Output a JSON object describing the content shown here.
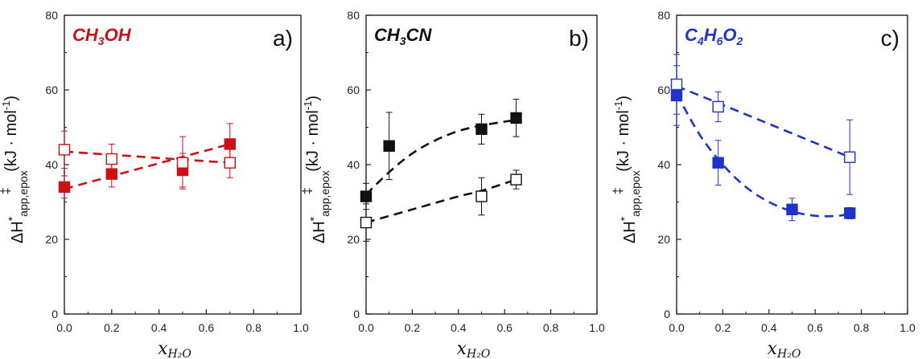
{
  "chart_data": [
    {
      "type": "scatter",
      "panel": "a)",
      "solvent": {
        "base": "CH",
        "sub1": "3",
        "mid": "OH",
        "sub2": "",
        "tail": ""
      },
      "color": "#cc1016",
      "xlim": [
        0,
        1.0
      ],
      "ylim": [
        0,
        80
      ],
      "xticks": [
        "0.0",
        "0.2",
        "0.4",
        "0.6",
        "0.8",
        "1.0"
      ],
      "yticks": [
        "0",
        "20",
        "40",
        "60",
        "80"
      ],
      "ylabel": {
        "main": "ΔH",
        "sup_star": "*",
        "sub": "app,epox",
        "sup_dagger": "‡",
        "units": " (kJ · mol",
        "units_exp": "-1",
        "units_close": ")"
      },
      "xlabel": {
        "main": "x",
        "sub": "H₂O"
      },
      "series": [
        {
          "marker": "filled-square",
          "x": [
            0.0,
            0.2,
            0.5,
            0.7
          ],
          "y": [
            34,
            37.5,
            38.5,
            45.5
          ],
          "err": [
            3,
            3.5,
            4.5,
            5.5
          ],
          "fit": [
            [
              0.0,
              33.5
            ],
            [
              0.7,
              45.5
            ]
          ]
        },
        {
          "marker": "open-square",
          "x": [
            0.0,
            0.2,
            0.5,
            0.7
          ],
          "y": [
            44,
            41.5,
            40.5,
            40.5
          ],
          "err": [
            5,
            4,
            7,
            4
          ],
          "fit": [
            [
              0.0,
              43.5
            ],
            [
              0.7,
              40.5
            ]
          ]
        }
      ]
    },
    {
      "type": "scatter",
      "panel": "b)",
      "solvent": {
        "base": "CH",
        "sub1": "3",
        "mid": "CN",
        "sub2": "",
        "tail": ""
      },
      "color": "#111111",
      "xlim": [
        0,
        1.0
      ],
      "ylim": [
        0,
        80
      ],
      "xticks": [
        "0.0",
        "0.2",
        "0.4",
        "0.6",
        "0.8",
        "1.0"
      ],
      "yticks": [
        "0",
        "20",
        "40",
        "60",
        "80"
      ],
      "ylabel": {
        "main": "ΔH",
        "sup_star": "*",
        "sub": "app,epox",
        "sup_dagger": "‡",
        "units": " (kJ · mol",
        "units_exp": "-1",
        "units_close": ")"
      },
      "xlabel": {
        "main": "x",
        "sub": "H₂O"
      },
      "series": [
        {
          "marker": "filled-square",
          "x": [
            0.0,
            0.1,
            0.5,
            0.65
          ],
          "y": [
            31.5,
            45,
            49.5,
            52.5
          ],
          "err": [
            3.5,
            9,
            4,
            5
          ],
          "fit": [
            [
              0.0,
              32
            ],
            [
              0.1,
              38
            ],
            [
              0.2,
              43
            ],
            [
              0.3,
              46.5
            ],
            [
              0.4,
              49
            ],
            [
              0.5,
              50.5
            ],
            [
              0.6,
              51.5
            ],
            [
              0.65,
              52
            ]
          ]
        },
        {
          "marker": "open-square",
          "x": [
            0.0,
            0.5,
            0.65
          ],
          "y": [
            24.5,
            31.5,
            36
          ],
          "err": [
            5,
            5,
            2.5
          ],
          "fit": [
            [
              0.0,
              24.5
            ],
            [
              0.2,
              28
            ],
            [
              0.4,
              31.5
            ],
            [
              0.5,
              33
            ],
            [
              0.65,
              36
            ]
          ]
        }
      ]
    },
    {
      "type": "scatter",
      "panel": "c)",
      "solvent": {
        "base": "C",
        "sub1": "4",
        "mid": "H",
        "sub2": "6",
        "tail": "O",
        "sub3": "2"
      },
      "color": "#1f33c8",
      "xlim": [
        0,
        1.0
      ],
      "ylim": [
        0,
        80
      ],
      "xticks": [
        "0.0",
        "0.2",
        "0.4",
        "0.6",
        "0.8",
        "1.0"
      ],
      "yticks": [
        "0",
        "20",
        "40",
        "60",
        "80"
      ],
      "ylabel": {
        "main": "ΔH",
        "sup_star": "*",
        "sub": "app,epox",
        "sup_dagger": "‡",
        "units": " (kJ · mol",
        "units_exp": "-1",
        "units_close": ")"
      },
      "xlabel": {
        "main": "x",
        "sub": "H₂O"
      },
      "series": [
        {
          "marker": "filled-square",
          "x": [
            0.0,
            0.18,
            0.5,
            0.75
          ],
          "y": [
            58.5,
            40.5,
            28,
            27
          ],
          "err": [
            8,
            6,
            3,
            1.5
          ],
          "fit": [
            [
              0.0,
              59
            ],
            [
              0.1,
              48
            ],
            [
              0.2,
              40
            ],
            [
              0.3,
              34
            ],
            [
              0.4,
              30
            ],
            [
              0.5,
              27.5
            ],
            [
              0.6,
              26.3
            ],
            [
              0.7,
              26.3
            ],
            [
              0.75,
              27
            ]
          ]
        },
        {
          "marker": "open-square",
          "x": [
            0.0,
            0.18,
            0.75
          ],
          "y": [
            61.5,
            55.5,
            42
          ],
          "err": [
            8,
            4,
            10
          ],
          "fit": [
            [
              0.0,
              61
            ],
            [
              0.18,
              56.5
            ],
            [
              0.75,
              42
            ]
          ]
        }
      ]
    }
  ]
}
